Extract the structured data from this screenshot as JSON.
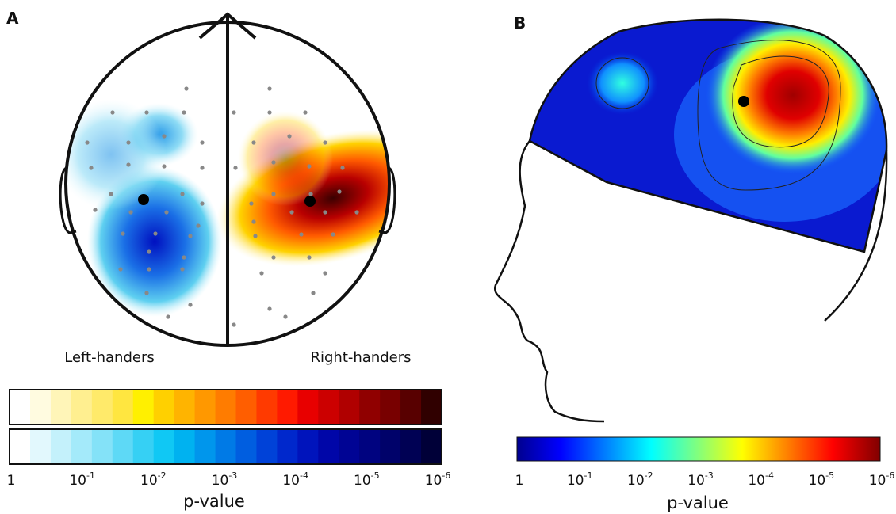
{
  "panel_a": {
    "label": "A",
    "left_caption": "Left-handers",
    "right_caption": "Right-handers",
    "colorbar": {
      "ticks": [
        {
          "base": "1"
        },
        {
          "base": "10",
          "exp": "-1"
        },
        {
          "base": "10",
          "exp": "-2"
        },
        {
          "base": "10",
          "exp": "-3"
        },
        {
          "base": "10",
          "exp": "-4"
        },
        {
          "base": "10",
          "exp": "-5"
        },
        {
          "base": "10",
          "exp": "-6"
        }
      ],
      "axis_label": "p-value"
    }
  },
  "panel_b": {
    "label": "B",
    "colorbar": {
      "ticks": [
        {
          "base": "1"
        },
        {
          "base": "10",
          "exp": "-1"
        },
        {
          "base": "10",
          "exp": "-2"
        },
        {
          "base": "10",
          "exp": "-3"
        },
        {
          "base": "10",
          "exp": "-4"
        },
        {
          "base": "10",
          "exp": "-5"
        },
        {
          "base": "10",
          "exp": "-6"
        }
      ],
      "axis_label": "p-value"
    }
  }
}
